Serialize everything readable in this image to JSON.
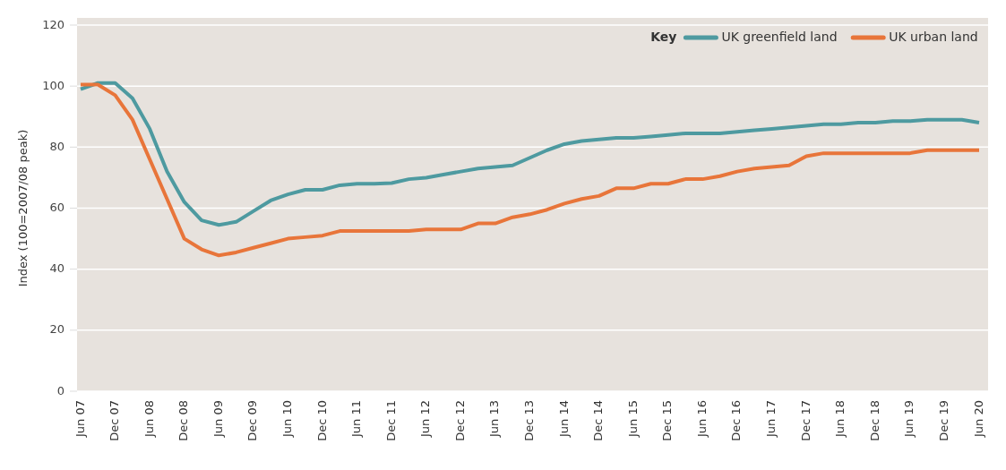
{
  "chart_data": {
    "type": "line",
    "ylabel": "Index (100=2007/08 peak)",
    "legend_title": "Key",
    "legend": "top right",
    "grid": "y",
    "ylim": [
      0,
      120
    ],
    "yticks": [
      0,
      20,
      40,
      60,
      80,
      100,
      120
    ],
    "categories": [
      "Jun 07",
      null,
      "Dec 07",
      null,
      "Jun 08",
      null,
      "Dec 08",
      null,
      "Jun 09",
      null,
      "Dec 09",
      null,
      "Jun 10",
      null,
      "Dec 10",
      null,
      "Jun 11",
      null,
      "Dec 11",
      null,
      "Jun 12",
      null,
      "Dec 12",
      null,
      "Jun 13",
      null,
      "Dec 13",
      null,
      "Jun 14",
      null,
      "Dec 14",
      null,
      "Jun 15",
      null,
      "Dec 15",
      null,
      "Jun 16",
      null,
      "Dec 16",
      null,
      "Jun 17",
      null,
      "Dec 17",
      null,
      "Jun 18",
      null,
      "Dec 18",
      null,
      "Jun 19",
      null,
      "Dec 19",
      null,
      "Jun 20"
    ],
    "series": [
      {
        "name": "UK greenfield land",
        "color": "#4e9aa0",
        "values": [
          99,
          101,
          101,
          96,
          86,
          72,
          62,
          56,
          54.5,
          55.5,
          59,
          62.5,
          64.5,
          66,
          66,
          67.5,
          68,
          68,
          68.2,
          69.5,
          70,
          71,
          72,
          73,
          73.5,
          74,
          76.5,
          79,
          81,
          82,
          82.5,
          83,
          83,
          83.5,
          84,
          84.5,
          84.5,
          84.5,
          85,
          85.5,
          86,
          86.5,
          87,
          87.5,
          87.5,
          88,
          88,
          88.5,
          88.5,
          89,
          89,
          89,
          88
        ]
      },
      {
        "name": "UK urban land",
        "color": "#e8753a",
        "values": [
          100.5,
          100.5,
          97,
          89,
          76,
          63,
          50,
          46.5,
          44.5,
          45.5,
          47,
          48.5,
          50,
          50.5,
          51,
          52.5,
          52.5,
          52.5,
          52.5,
          52.5,
          53,
          53,
          53,
          55,
          55,
          57,
          58,
          59.5,
          61.5,
          63,
          64,
          66.5,
          66.5,
          68,
          68,
          69.5,
          69.5,
          70.5,
          72,
          73,
          73.5,
          74,
          77,
          78,
          78,
          78,
          78,
          78,
          78,
          79,
          79,
          79,
          79
        ]
      }
    ]
  }
}
